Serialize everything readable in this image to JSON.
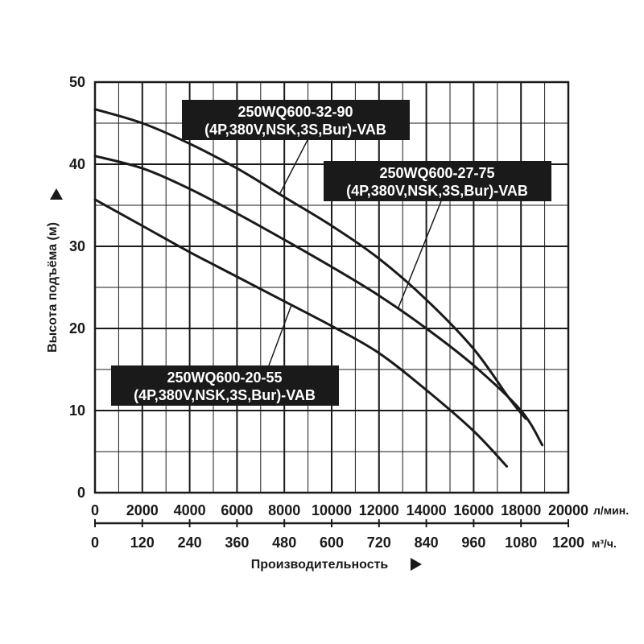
{
  "chart_data": {
    "type": "line",
    "ylabel": "Высота подъёма (м)",
    "xlabel": "Производительность",
    "x_unit_primary": "л/мин.",
    "x_unit_secondary": "м³/ч.",
    "xlim": [
      0,
      20000
    ],
    "ylim": [
      0,
      50
    ],
    "x_ticks": [
      "0",
      "2000",
      "4000",
      "6000",
      "8000",
      "10000",
      "12000",
      "14000",
      "16000",
      "18000",
      "20000"
    ],
    "x_ticks_secondary": [
      "0",
      "120",
      "240",
      "360",
      "480",
      "600",
      "720",
      "840",
      "960",
      "1080",
      "1200"
    ],
    "y_ticks": [
      "0",
      "10",
      "20",
      "30",
      "40",
      "50"
    ],
    "grid": true,
    "series": [
      {
        "name": "250WQ600-32-90 (4P,380V,NSK,3S,Bur)-VAB",
        "label_lines": [
          "250WQ600-32-90",
          "(4P,380V,NSK,3S,Bur)-VAB"
        ],
        "color": "#1a1a1a",
        "points": [
          [
            0,
            46.7
          ],
          [
            2000,
            45.0
          ],
          [
            4000,
            42.5
          ],
          [
            6000,
            39.5
          ],
          [
            8000,
            36.0
          ],
          [
            10000,
            32.5
          ],
          [
            12000,
            28.5
          ],
          [
            14000,
            23.5
          ],
          [
            16000,
            17.5
          ],
          [
            17500,
            11.5
          ],
          [
            18200,
            9.0
          ]
        ]
      },
      {
        "name": "250WQ600-27-75 (4P,380V,NSK,3S,Bur)-VAB",
        "label_lines": [
          "250WQ600-27-75",
          "(4P,380V,NSK,3S,Bur)-VAB"
        ],
        "color": "#1a1a1a",
        "points": [
          [
            0,
            41.0
          ],
          [
            2000,
            39.5
          ],
          [
            4000,
            37.0
          ],
          [
            6000,
            34.0
          ],
          [
            8000,
            30.8
          ],
          [
            10000,
            27.5
          ],
          [
            12000,
            24.0
          ],
          [
            14000,
            20.0
          ],
          [
            16000,
            15.5
          ],
          [
            18000,
            10.0
          ],
          [
            18900,
            5.8
          ]
        ]
      },
      {
        "name": "250WQ600-20-55 (4P,380V,NSK,3S,Bur)-VAB",
        "label_lines": [
          "250WQ600-20-55",
          "(4P,380V,NSK,3S,Bur)-VAB"
        ],
        "color": "#1a1a1a",
        "points": [
          [
            0,
            35.7
          ],
          [
            2000,
            32.5
          ],
          [
            4000,
            29.3
          ],
          [
            6000,
            26.3
          ],
          [
            8000,
            23.3
          ],
          [
            10000,
            20.3
          ],
          [
            12000,
            17.0
          ],
          [
            14000,
            12.5
          ],
          [
            16000,
            7.5
          ],
          [
            17400,
            3.2
          ]
        ]
      }
    ]
  }
}
